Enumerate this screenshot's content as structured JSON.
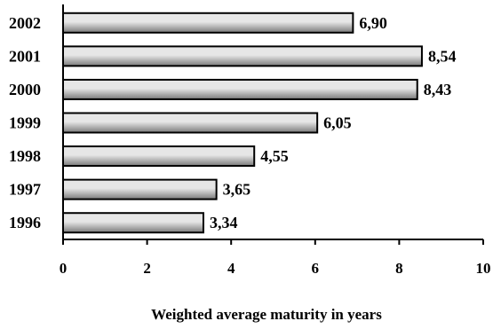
{
  "chart_data": {
    "type": "bar",
    "orientation": "horizontal",
    "categories": [
      "2002",
      "2001",
      "2000",
      "1999",
      "1998",
      "1997",
      "1996"
    ],
    "values": [
      6.9,
      8.54,
      8.43,
      6.05,
      4.55,
      3.65,
      3.34
    ],
    "value_labels": [
      "6,90",
      "8,54",
      "8,43",
      "6,05",
      "4,55",
      "3,65",
      "3,34"
    ],
    "title": "",
    "xlabel": "Weighted average maturity in years",
    "ylabel": "",
    "xlim": [
      0,
      10
    ],
    "xticks": [
      "0",
      "2",
      "4",
      "6",
      "8",
      "10"
    ],
    "grid": false,
    "legend": "none",
    "colors": {
      "bar_light": "#e6e6e6",
      "bar_dark": "#7a7a7a",
      "bar_border": "#000000"
    }
  }
}
